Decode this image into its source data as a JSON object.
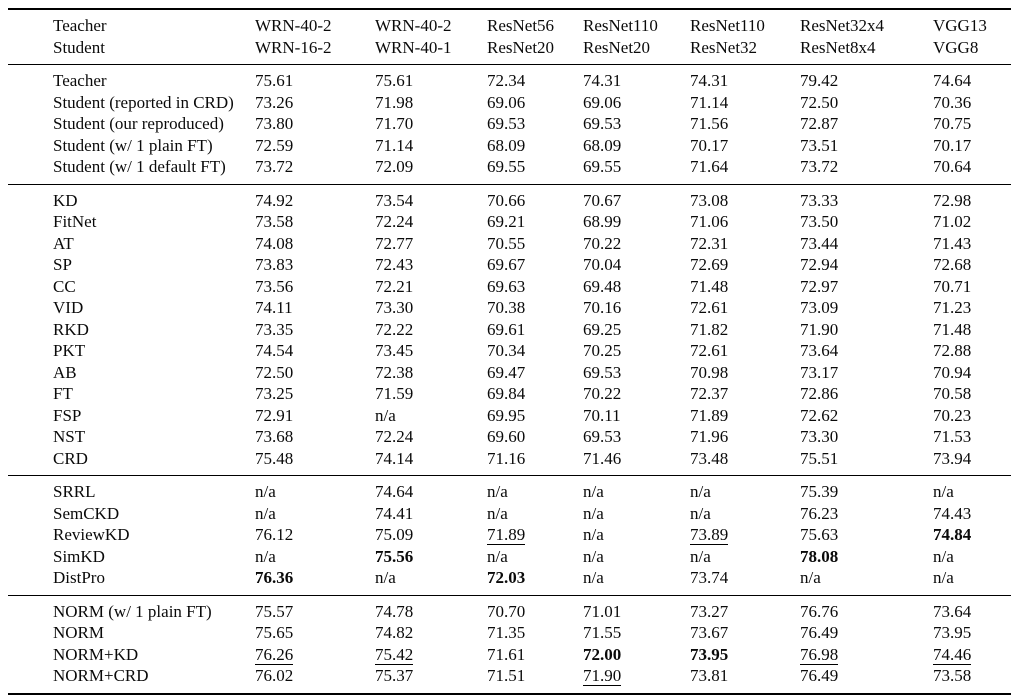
{
  "table": {
    "header": {
      "row_label_lines": [
        "Teacher",
        "Student"
      ],
      "columns": [
        {
          "teacher": "WRN-40-2",
          "student": "WRN-16-2"
        },
        {
          "teacher": "WRN-40-2",
          "student": "WRN-40-1"
        },
        {
          "teacher": "ResNet56",
          "student": "ResNet20"
        },
        {
          "teacher": "ResNet110",
          "student": "ResNet20"
        },
        {
          "teacher": "ResNet110",
          "student": "ResNet32"
        },
        {
          "teacher": "ResNet32x4",
          "student": "ResNet8x4"
        },
        {
          "teacher": "VGG13",
          "student": "VGG8"
        }
      ]
    },
    "sections": [
      {
        "name": "baselines",
        "rows": [
          {
            "label": "Teacher",
            "values": [
              "75.61",
              "75.61",
              "72.34",
              "74.31",
              "74.31",
              "79.42",
              "74.64"
            ]
          },
          {
            "label": "Student (reported in CRD)",
            "values": [
              "73.26",
              "71.98",
              "69.06",
              "69.06",
              "71.14",
              "72.50",
              "70.36"
            ]
          },
          {
            "label": "Student (our reproduced)",
            "values": [
              "73.80",
              "71.70",
              "69.53",
              "69.53",
              "71.56",
              "72.87",
              "70.75"
            ]
          },
          {
            "label": "Student (w/ 1 plain FT)",
            "values": [
              "72.59",
              "71.14",
              "68.09",
              "68.09",
              "70.17",
              "73.51",
              "70.17"
            ]
          },
          {
            "label": "Student (w/ 1 default FT)",
            "values": [
              "73.72",
              "72.09",
              "69.55",
              "69.55",
              "71.64",
              "73.72",
              "70.64"
            ]
          }
        ]
      },
      {
        "name": "classic-kd-methods",
        "rows": [
          {
            "label": "KD",
            "values": [
              "74.92",
              "73.54",
              "70.66",
              "70.67",
              "73.08",
              "73.33",
              "72.98"
            ]
          },
          {
            "label": "FitNet",
            "values": [
              "73.58",
              "72.24",
              "69.21",
              "68.99",
              "71.06",
              "73.50",
              "71.02"
            ]
          },
          {
            "label": "AT",
            "values": [
              "74.08",
              "72.77",
              "70.55",
              "70.22",
              "72.31",
              "73.44",
              "71.43"
            ]
          },
          {
            "label": "SP",
            "values": [
              "73.83",
              "72.43",
              "69.67",
              "70.04",
              "72.69",
              "72.94",
              "72.68"
            ]
          },
          {
            "label": "CC",
            "values": [
              "73.56",
              "72.21",
              "69.63",
              "69.48",
              "71.48",
              "72.97",
              "70.71"
            ]
          },
          {
            "label": "VID",
            "values": [
              "74.11",
              "73.30",
              "70.38",
              "70.16",
              "72.61",
              "73.09",
              "71.23"
            ]
          },
          {
            "label": "RKD",
            "values": [
              "73.35",
              "72.22",
              "69.61",
              "69.25",
              "71.82",
              "71.90",
              "71.48"
            ]
          },
          {
            "label": "PKT",
            "values": [
              "74.54",
              "73.45",
              "70.34",
              "70.25",
              "72.61",
              "73.64",
              "72.88"
            ]
          },
          {
            "label": "AB",
            "values": [
              "72.50",
              "72.38",
              "69.47",
              "69.53",
              "70.98",
              "73.17",
              "70.94"
            ]
          },
          {
            "label": "FT",
            "values": [
              "73.25",
              "71.59",
              "69.84",
              "70.22",
              "72.37",
              "72.86",
              "70.58"
            ]
          },
          {
            "label": "FSP",
            "values": [
              "72.91",
              "n/a",
              "69.95",
              "70.11",
              "71.89",
              "72.62",
              "70.23"
            ]
          },
          {
            "label": "NST",
            "values": [
              "73.68",
              "72.24",
              "69.60",
              "69.53",
              "71.96",
              "73.30",
              "71.53"
            ]
          },
          {
            "label": "CRD",
            "values": [
              "75.48",
              "74.14",
              "71.16",
              "71.46",
              "73.48",
              "75.51",
              "73.94"
            ]
          }
        ]
      },
      {
        "name": "recent-methods",
        "rows": [
          {
            "label": "SRRL",
            "values": [
              "n/a",
              "74.64",
              "n/a",
              "n/a",
              "n/a",
              "75.39",
              "n/a"
            ]
          },
          {
            "label": "SemCKD",
            "values": [
              "n/a",
              "74.41",
              "n/a",
              "n/a",
              "n/a",
              "76.23",
              "74.43"
            ]
          },
          {
            "label": "ReviewKD",
            "values": [
              "76.12",
              "75.09",
              {
                "text": "71.89",
                "style": "underline"
              },
              "n/a",
              {
                "text": "73.89",
                "style": "underline"
              },
              "75.63",
              {
                "text": "74.84",
                "style": "bold"
              }
            ]
          },
          {
            "label": "SimKD",
            "values": [
              "n/a",
              {
                "text": "75.56",
                "style": "bold"
              },
              "n/a",
              "n/a",
              "n/a",
              {
                "text": "78.08",
                "style": "bold"
              },
              "n/a"
            ]
          },
          {
            "label": "DistPro",
            "values": [
              {
                "text": "76.36",
                "style": "bold"
              },
              "n/a",
              {
                "text": "72.03",
                "style": "bold"
              },
              "n/a",
              "73.74",
              "n/a",
              "n/a"
            ]
          }
        ]
      },
      {
        "name": "norm-methods",
        "rows": [
          {
            "label": "NORM (w/ 1 plain FT)",
            "values": [
              "75.57",
              "74.78",
              "70.70",
              "71.01",
              "73.27",
              "76.76",
              "73.64"
            ]
          },
          {
            "label": "NORM",
            "values": [
              "75.65",
              "74.82",
              "71.35",
              "71.55",
              "73.67",
              "76.49",
              "73.95"
            ]
          },
          {
            "label": "NORM+KD",
            "values": [
              {
                "text": "76.26",
                "style": "underline"
              },
              {
                "text": "75.42",
                "style": "underline"
              },
              "71.61",
              {
                "text": "72.00",
                "style": "bold"
              },
              {
                "text": "73.95",
                "style": "bold"
              },
              {
                "text": "76.98",
                "style": "underline"
              },
              {
                "text": "74.46",
                "style": "underline"
              }
            ]
          },
          {
            "label": "NORM+CRD",
            "values": [
              "76.02",
              "75.37",
              "71.51",
              {
                "text": "71.90",
                "style": "underline"
              },
              "73.81",
              "76.49",
              "73.58"
            ]
          }
        ]
      }
    ]
  }
}
